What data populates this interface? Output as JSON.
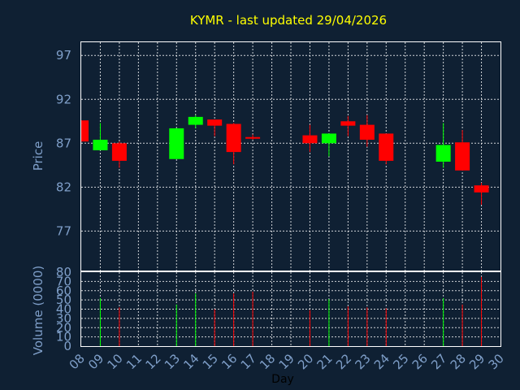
{
  "chart_data": {
    "type": "candlestick",
    "title": "KYMR - last updated 29/04/2026",
    "xlabel": "Day",
    "ylabel_price": "Price",
    "ylabel_volume": "Volume (0000)",
    "x_ticks": [
      "08",
      "09",
      "10",
      "11",
      "12",
      "13",
      "14",
      "15",
      "16",
      "17",
      "18",
      "19",
      "20",
      "21",
      "22",
      "23",
      "24",
      "25",
      "26",
      "27",
      "28",
      "29",
      "30"
    ],
    "price_ticks": [
      97,
      92,
      87,
      82,
      77
    ],
    "volume_ticks": [
      0,
      10,
      20,
      30,
      40,
      50,
      60,
      70,
      80
    ],
    "price_range": [
      72.5,
      98.5
    ],
    "volume_range": [
      0,
      80
    ],
    "grid": true,
    "colors": {
      "up": "#00ff00",
      "down": "#ff0000",
      "background": "#0f2033",
      "title": "#ffff00",
      "ticks": "#7f9fc9"
    },
    "candles": [
      {
        "day": "08",
        "open": 89.6,
        "close": 87.2,
        "high": 89.6,
        "low": 87.2,
        "volume": 0
      },
      {
        "day": "09",
        "open": 86.2,
        "close": 87.4,
        "high": 89.3,
        "low": 86.2,
        "volume": 52
      },
      {
        "day": "10",
        "open": 87.0,
        "close": 85.0,
        "high": 87.2,
        "low": 84.2,
        "volume": 42
      },
      {
        "day": "13",
        "open": 85.2,
        "close": 88.7,
        "high": 88.7,
        "low": 85.2,
        "volume": 45
      },
      {
        "day": "14",
        "open": 89.1,
        "close": 90.0,
        "high": 90.2,
        "low": 88.7,
        "volume": 57
      },
      {
        "day": "15",
        "open": 89.7,
        "close": 89.0,
        "high": 89.7,
        "low": 87.8,
        "volume": 40
      },
      {
        "day": "16",
        "open": 89.2,
        "close": 86.0,
        "high": 89.3,
        "low": 84.6,
        "volume": 57
      },
      {
        "day": "17",
        "open": 87.7,
        "close": 87.6,
        "high": 88.0,
        "low": 87.4,
        "volume": 59
      },
      {
        "day": "20",
        "open": 87.9,
        "close": 87.0,
        "high": 89.1,
        "low": 86.0,
        "volume": 39
      },
      {
        "day": "21",
        "open": 87.0,
        "close": 88.1,
        "high": 88.1,
        "low": 85.5,
        "volume": 51
      },
      {
        "day": "22",
        "open": 89.5,
        "close": 89.0,
        "high": 90.1,
        "low": 87.8,
        "volume": 43
      },
      {
        "day": "23",
        "open": 89.1,
        "close": 87.4,
        "high": 90.2,
        "low": 86.6,
        "volume": 42
      },
      {
        "day": "24",
        "open": 88.1,
        "close": 85.0,
        "high": 88.1,
        "low": 84.6,
        "volume": 41
      },
      {
        "day": "27",
        "open": 84.9,
        "close": 86.8,
        "high": 89.3,
        "low": 84.2,
        "volume": 52
      },
      {
        "day": "28",
        "open": 87.1,
        "close": 83.9,
        "high": 88.5,
        "low": 83.9,
        "volume": 45
      },
      {
        "day": "29",
        "open": 82.2,
        "close": 81.4,
        "high": 82.5,
        "low": 80.0,
        "volume": 75
      }
    ]
  }
}
